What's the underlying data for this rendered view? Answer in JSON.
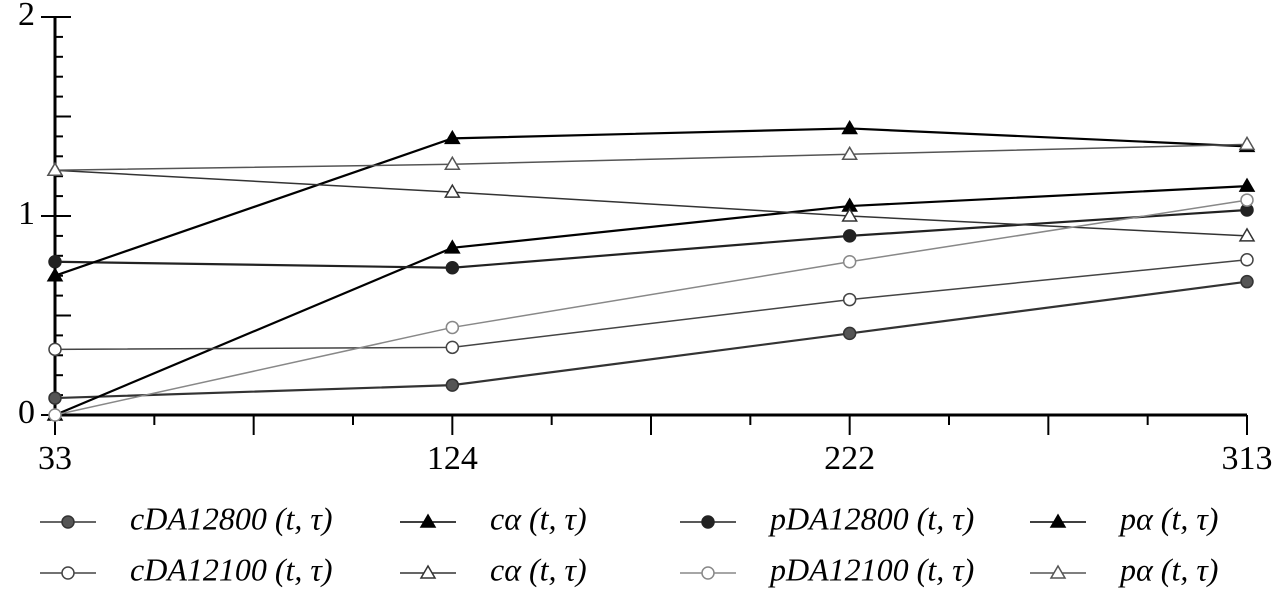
{
  "chart_data": {
    "type": "line",
    "categories": [
      "33",
      "124",
      "222",
      "313"
    ],
    "ylim": [
      0,
      2
    ],
    "yticks": [
      0,
      1,
      2
    ],
    "series": [
      {
        "name": "cDA12800 (t, τ)",
        "color": "#333333",
        "marker": "circle",
        "marker_fill": "#555555",
        "values": [
          0.085,
          0.15,
          0.41,
          0.67
        ]
      },
      {
        "name": "cα (t, τ)",
        "color": "#000000",
        "marker": "triangle",
        "marker_fill": "#000000",
        "values": [
          0,
          0.84,
          1.05,
          1.15
        ]
      },
      {
        "name": "pDA12800 (t, τ)",
        "color": "#222222",
        "marker": "circle",
        "marker_fill": "#222222",
        "values": [
          0.77,
          0.74,
          0.9,
          1.03
        ]
      },
      {
        "name": "pα (t, τ)",
        "color": "#000000",
        "marker": "triangle",
        "marker_fill": "#000000",
        "values": [
          0.7,
          1.39,
          1.44,
          1.35
        ]
      },
      {
        "name": "cDA12100 (t, τ)",
        "color": "#444444",
        "marker": "circle",
        "marker_fill": "#ffffff",
        "values": [
          0.33,
          0.34,
          0.58,
          0.78
        ]
      },
      {
        "name": "cα (t, τ)",
        "color": "#333333",
        "marker": "triangle",
        "marker_fill": "#ffffff",
        "values": [
          1.23,
          1.12,
          1.0,
          0.9
        ]
      },
      {
        "name": "pDA12100 (t, τ)",
        "color": "#888888",
        "marker": "circle",
        "marker_fill": "#ffffff",
        "values": [
          0,
          0.44,
          0.77,
          1.08
        ]
      },
      {
        "name": "pα (t, τ)",
        "color": "#555555",
        "marker": "triangle",
        "marker_fill": "#ffffff",
        "values": [
          1.23,
          1.26,
          1.31,
          1.36
        ]
      }
    ]
  }
}
